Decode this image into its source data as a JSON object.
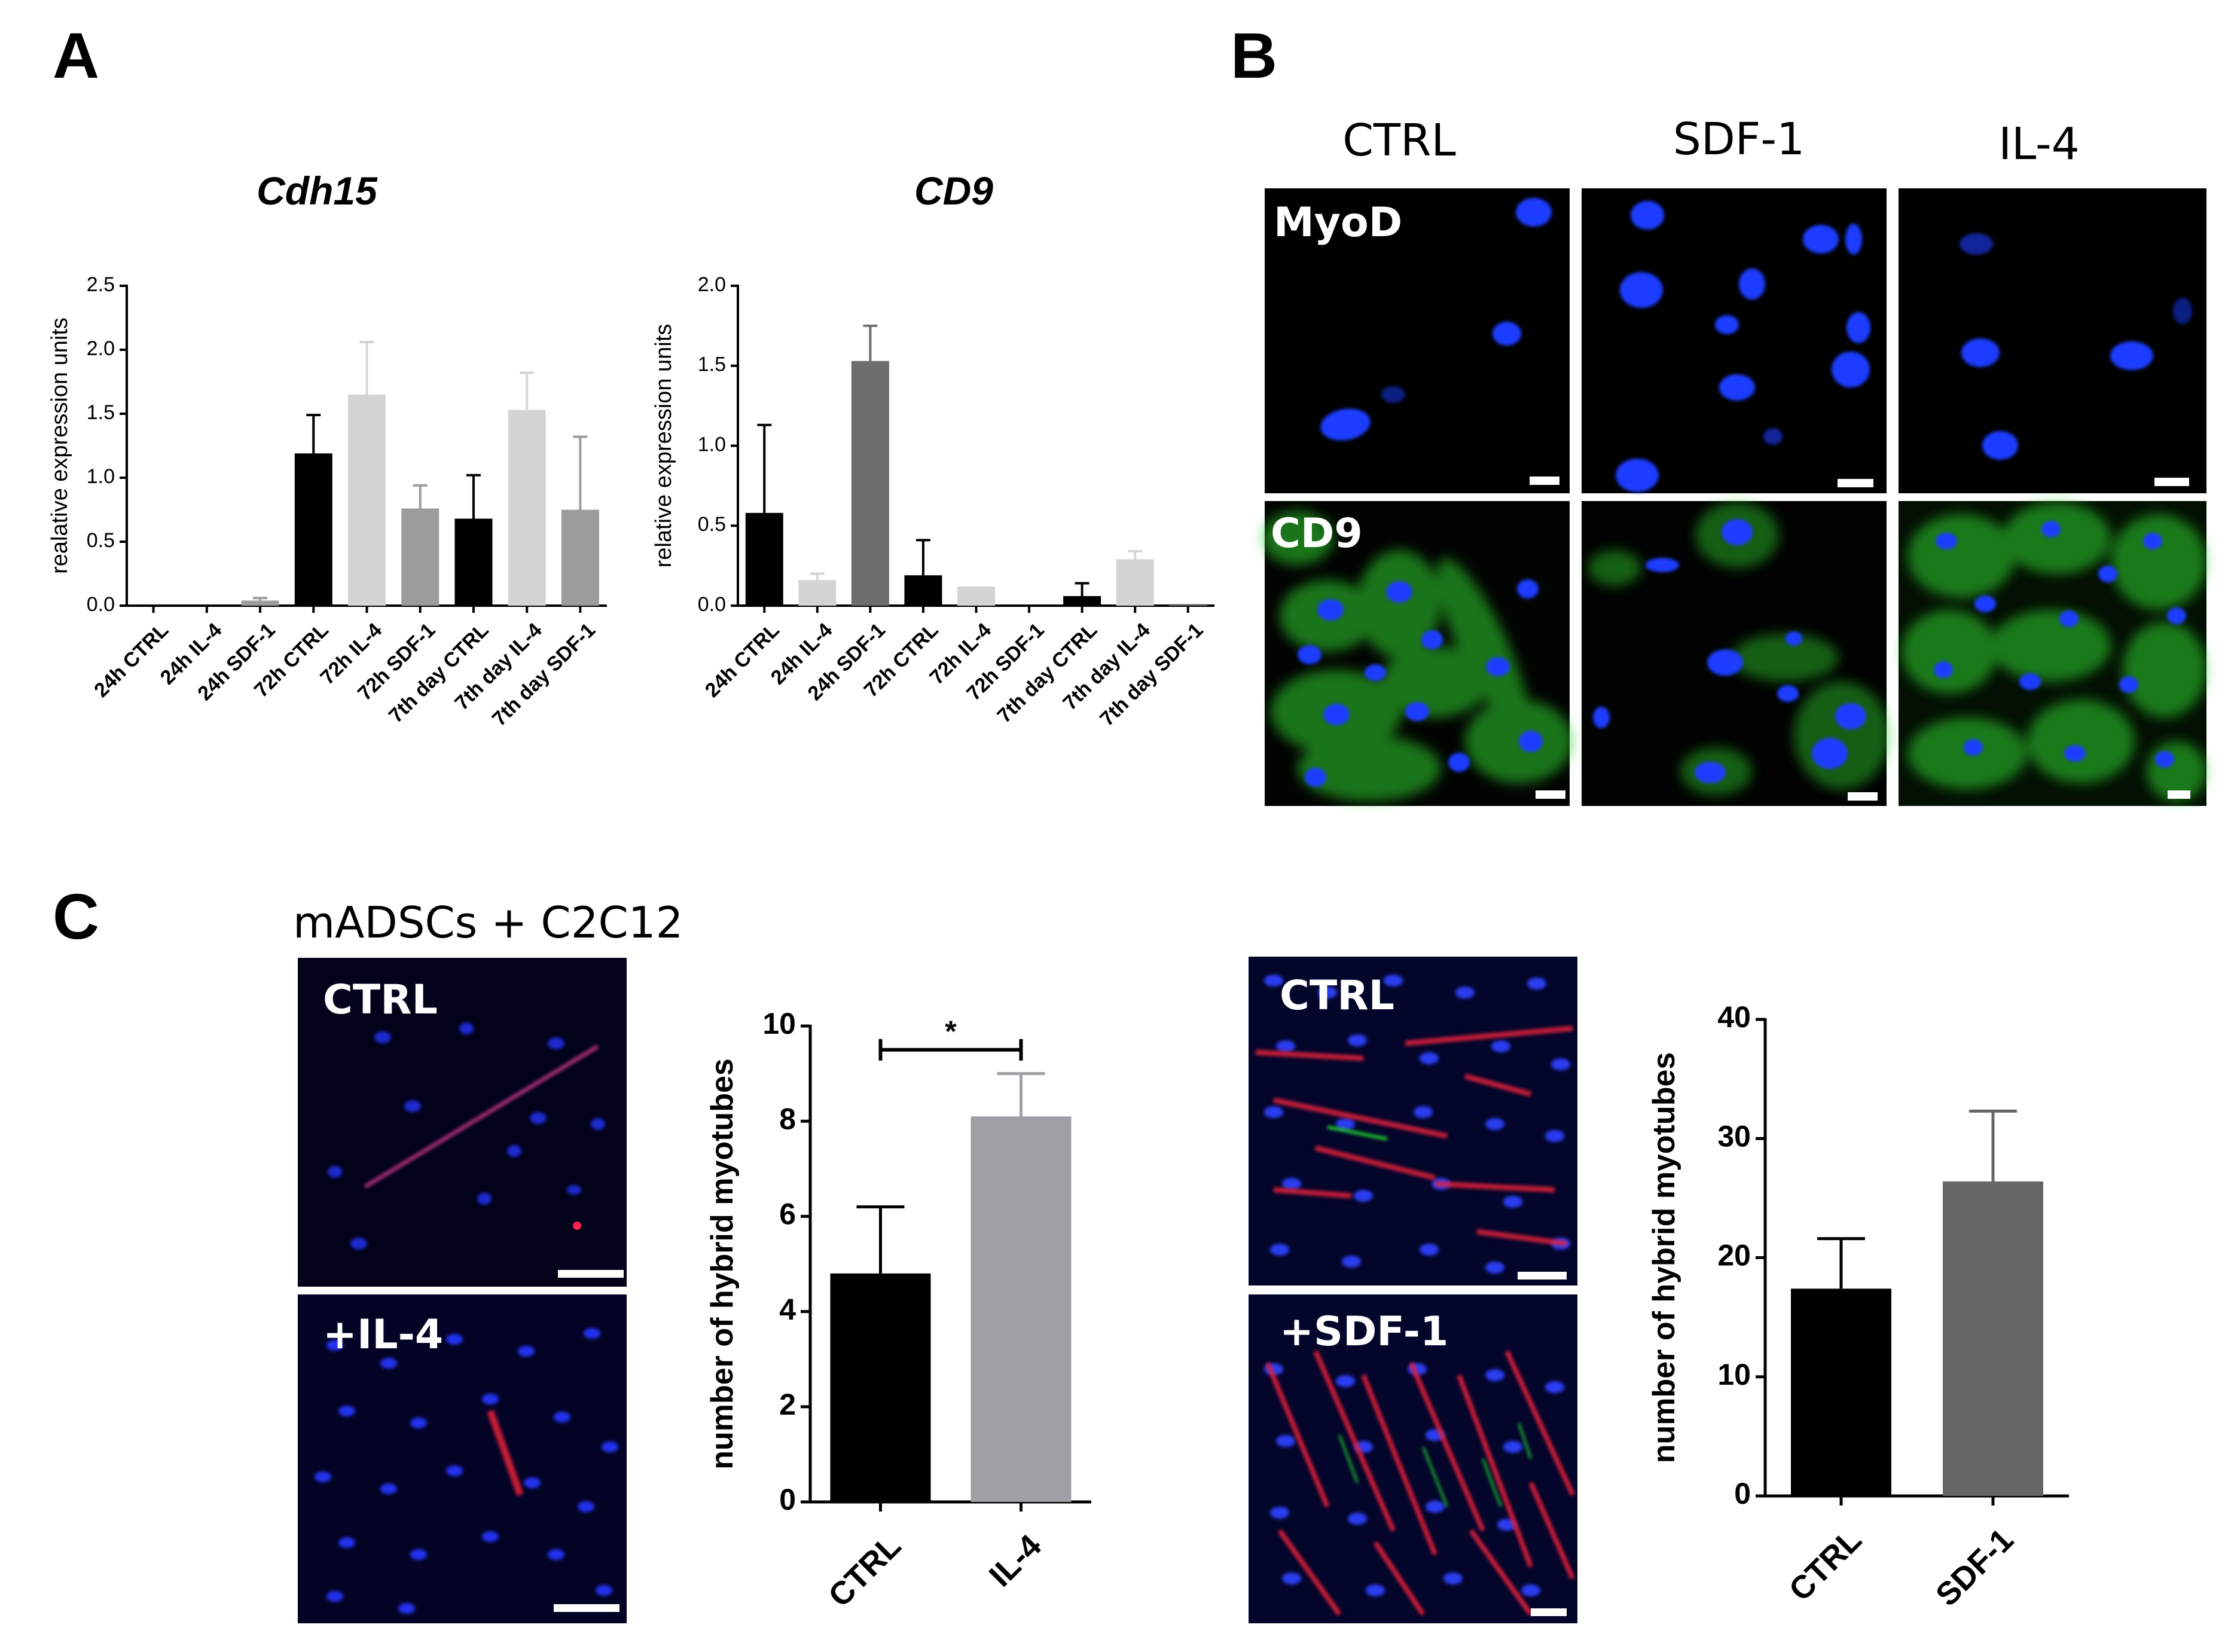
{
  "panels": {
    "A": "A",
    "B": "B",
    "C": "C"
  },
  "panel_b": {
    "columns": [
      "CTRL",
      "SDF-1",
      "IL-4"
    ],
    "rows": [
      "MyoD",
      "CD9"
    ],
    "colors": {
      "nucleus": "#1a3cff",
      "marker": "#2fd12f",
      "background": "#000000"
    }
  },
  "panel_c": {
    "subtitle": "mADSCs + C2C12",
    "left_images": [
      "CTRL",
      "+IL-4"
    ],
    "right_images": [
      "CTRL",
      "+SDF-1"
    ],
    "colors": {
      "nucleus": "#2233ee",
      "myotube": "#e8203a",
      "hybrid": "#22dd33"
    }
  },
  "chart_data": [
    {
      "type": "bar",
      "title": "Cdh15",
      "xlabel": "",
      "ylabel": "realative expression units",
      "ylim": [
        0,
        2.5
      ],
      "yticks": [
        "0.0",
        "0.5",
        "1.0",
        "1.5",
        "2.0",
        "2.5"
      ],
      "categories": [
        "24h CTRL",
        "24h IL-4",
        "24h SDF-1",
        "72h CTRL",
        "72h IL-4",
        "72h SDF-1",
        "7th day CTRL",
        "7th day IL-4",
        "7th day SDF-1"
      ],
      "values": [
        0.0,
        0.0,
        0.04,
        1.19,
        1.65,
        0.76,
        0.68,
        1.53,
        0.75
      ],
      "errors": [
        0.0,
        0.0,
        0.02,
        0.3,
        0.41,
        0.18,
        0.34,
        0.29,
        0.57
      ],
      "colors": [
        "#000000",
        "#d4d4d4",
        "#9c9c9c",
        "#000000",
        "#d4d4d4",
        "#9c9c9c",
        "#000000",
        "#d4d4d4",
        "#9c9c9c"
      ]
    },
    {
      "type": "bar",
      "title": "CD9",
      "xlabel": "",
      "ylabel": "relative expression units",
      "ylim": [
        0,
        2.0
      ],
      "yticks": [
        "0.0",
        "0.5",
        "1.0",
        "1.5",
        "2.0"
      ],
      "categories": [
        "24h CTRL",
        "24h IL-4",
        "24h SDF-1",
        "72h CTRL",
        "72h IL-4",
        "72h SDF-1",
        "7th day CTRL",
        "7th day IL-4",
        "7th day SDF-1"
      ],
      "values": [
        0.58,
        0.16,
        1.53,
        0.19,
        0.12,
        0.0,
        0.06,
        0.29,
        0.01
      ],
      "errors": [
        0.55,
        0.04,
        0.22,
        0.22,
        0.0,
        0.0,
        0.08,
        0.05,
        0.0
      ],
      "colors": [
        "#000000",
        "#d4d4d4",
        "#6e6e6e",
        "#000000",
        "#d4d4d4",
        "#6e6e6e",
        "#000000",
        "#d4d4d4",
        "#6e6e6e"
      ]
    },
    {
      "type": "bar",
      "title": "",
      "xlabel": "",
      "ylabel": "number of hybrid myotubes",
      "ylim": [
        0,
        10
      ],
      "yticks": [
        "0",
        "2",
        "4",
        "6",
        "8",
        "10"
      ],
      "categories": [
        "CTRL",
        "IL-4"
      ],
      "values": [
        4.8,
        8.1
      ],
      "errors": [
        1.4,
        0.9
      ],
      "colors": [
        "#000000",
        "#a0a0a4"
      ],
      "significance": "*"
    },
    {
      "type": "bar",
      "title": "",
      "xlabel": "",
      "ylabel": "number of hybrid myotubes",
      "ylim": [
        0,
        40
      ],
      "yticks": [
        "0",
        "10",
        "20",
        "30",
        "40"
      ],
      "categories": [
        "CTRL",
        "SDF-1"
      ],
      "values": [
        17.4,
        26.4
      ],
      "errors": [
        4.2,
        5.9
      ],
      "colors": [
        "#000000",
        "#666666"
      ]
    }
  ]
}
